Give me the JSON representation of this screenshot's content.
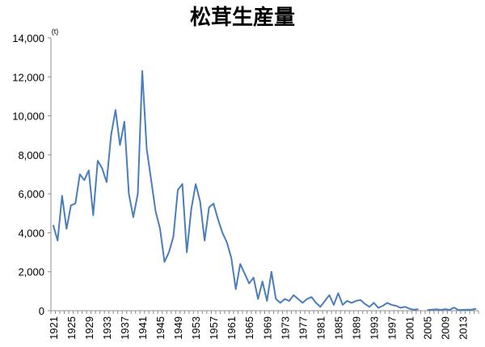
{
  "chart_data": {
    "type": "line",
    "title": "松茸生産量",
    "unit_label": "(t)",
    "xlabel": "",
    "ylabel": "",
    "ylim": [
      0,
      14000
    ],
    "y_ticks": [
      0,
      2000,
      4000,
      6000,
      8000,
      10000,
      12000,
      14000
    ],
    "y_tick_labels": [
      "0",
      "2,000",
      "4,000",
      "6,000",
      "8,000",
      "10,000",
      "12,000",
      "14,000"
    ],
    "x_range": [
      1921,
      2016
    ],
    "x_tick_labels": [
      "1921",
      "1925",
      "1929",
      "1933",
      "1937",
      "1941",
      "1945",
      "1949",
      "1953",
      "1957",
      "1961",
      "1965",
      "1969",
      "1973",
      "1977",
      "1981",
      "1985",
      "1989",
      "1993",
      "1997",
      "2001",
      "2005",
      "2009",
      "2013"
    ],
    "grid": false,
    "legend": "none",
    "colors": {
      "line": "#4a7ebb",
      "axis": "#8c8c8c",
      "text": "#000000"
    },
    "series": [
      {
        "name": "",
        "x": [
          1921,
          1922,
          1923,
          1924,
          1925,
          1926,
          1927,
          1928,
          1929,
          1930,
          1931,
          1932,
          1933,
          1934,
          1935,
          1936,
          1937,
          1938,
          1939,
          1940,
          1941,
          1942,
          1943,
          1944,
          1945,
          1946,
          1947,
          1948,
          1949,
          1950,
          1951,
          1952,
          1953,
          1954,
          1955,
          1956,
          1957,
          1958,
          1959,
          1960,
          1961,
          1962,
          1963,
          1964,
          1965,
          1966,
          1967,
          1968,
          1969,
          1970,
          1971,
          1972,
          1973,
          1974,
          1975,
          1976,
          1977,
          1978,
          1979,
          1980,
          1981,
          1982,
          1983,
          1984,
          1985,
          1986,
          1987,
          1988,
          1989,
          1990,
          1991,
          1992,
          1993,
          1994,
          1995,
          1996,
          1997,
          1998,
          1999,
          2000,
          2001,
          2002,
          2003,
          2004,
          2005,
          2006,
          2007,
          2008,
          2009,
          2010,
          2011,
          2012,
          2013,
          2014,
          2015,
          2016
        ],
        "values": [
          4400,
          3600,
          5900,
          4200,
          5400,
          5500,
          7000,
          6700,
          7200,
          4900,
          7700,
          7300,
          6600,
          9000,
          10300,
          8500,
          9700,
          6000,
          4800,
          6000,
          12300,
          8300,
          6700,
          5100,
          4200,
          2500,
          3000,
          3800,
          6200,
          6500,
          3000,
          5200,
          6500,
          5600,
          3600,
          5300,
          5500,
          4700,
          4000,
          3500,
          2700,
          1100,
          2400,
          1900,
          1400,
          1700,
          600,
          1500,
          500,
          2000,
          600,
          400,
          600,
          500,
          800,
          600,
          400,
          600,
          700,
          400,
          200,
          500,
          800,
          300,
          900,
          300,
          500,
          400,
          500,
          550,
          350,
          200,
          400,
          150,
          250,
          400,
          300,
          250,
          150,
          200,
          100,
          50,
          80,
          null,
          30,
          50,
          70,
          40,
          80,
          40,
          160,
          30,
          40,
          50,
          60,
          100
        ]
      }
    ]
  }
}
